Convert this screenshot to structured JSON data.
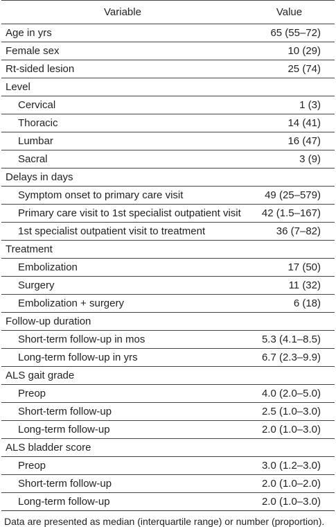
{
  "header": {
    "variable": "Variable",
    "value": "Value"
  },
  "rows": [
    {
      "label": "Age in yrs",
      "value": "65 (55–72)",
      "indent": false
    },
    {
      "label": "Female sex",
      "value": "10 (29)",
      "indent": false
    },
    {
      "label": "Rt-sided lesion",
      "value": "25 (74)",
      "indent": false
    },
    {
      "label": "Level",
      "value": "",
      "indent": false
    },
    {
      "label": "Cervical",
      "value": "1 (3)",
      "indent": true
    },
    {
      "label": "Thoracic",
      "value": "14 (41)",
      "indent": true
    },
    {
      "label": "Lumbar",
      "value": "16 (47)",
      "indent": true
    },
    {
      "label": "Sacral",
      "value": "3 (9)",
      "indent": true
    },
    {
      "label": "Delays in days",
      "value": "",
      "indent": false
    },
    {
      "label": "Symptom onset to primary care visit",
      "value": "49 (25–579)",
      "indent": true
    },
    {
      "label": "Primary care visit to 1st specialist outpatient visit",
      "value": "42 (1.5–167)",
      "indent": true
    },
    {
      "label": "1st specialist outpatient visit to treatment",
      "value": "36 (7–82)",
      "indent": true
    },
    {
      "label": "Treatment",
      "value": "",
      "indent": false
    },
    {
      "label": "Embolization",
      "value": "17 (50)",
      "indent": true
    },
    {
      "label": "Surgery",
      "value": "11 (32)",
      "indent": true
    },
    {
      "label": "Embolization + surgery",
      "value": "6 (18)",
      "indent": true
    },
    {
      "label": "Follow-up duration",
      "value": "",
      "indent": false
    },
    {
      "label": "Short-term follow-up in mos",
      "value": "5.3 (4.1–8.5)",
      "indent": true
    },
    {
      "label": "Long-term follow-up in yrs",
      "value": "6.7 (2.3–9.9)",
      "indent": true
    },
    {
      "label": "ALS gait grade",
      "value": "",
      "indent": false
    },
    {
      "label": "Preop",
      "value": "4.0 (2.0–5.0)",
      "indent": true
    },
    {
      "label": "Short-term follow-up",
      "value": "2.5 (1.0–3.0)",
      "indent": true
    },
    {
      "label": "Long-term follow-up",
      "value": "2.0 (1.0–3.0)",
      "indent": true
    },
    {
      "label": "ALS bladder score",
      "value": "",
      "indent": false
    },
    {
      "label": "Preop",
      "value": "3.0 (1.2–3.0)",
      "indent": true
    },
    {
      "label": "Short-term follow-up",
      "value": "2.0 (1.0–2.0)",
      "indent": true
    },
    {
      "label": "Long-term follow-up",
      "value": "2.0 (1.0–3.0)",
      "indent": true
    }
  ],
  "footnote": "Data are presented as median (interquartile range) or number (proportion)."
}
